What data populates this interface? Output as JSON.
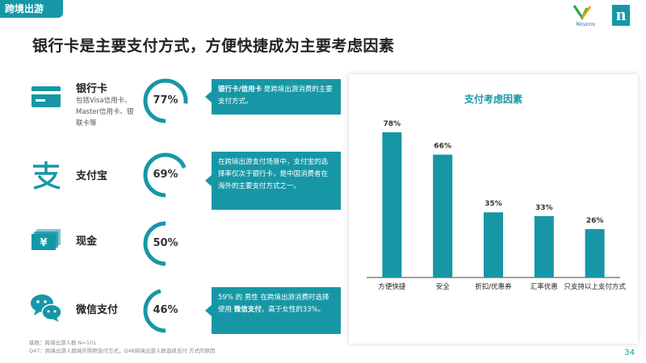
{
  "header": {
    "tag": "跨境出游",
    "logo_text": "Westerm",
    "brand_mark": "n"
  },
  "title": "银行卡是主要支付方式，方便快捷成为主要考虑因素",
  "colors": {
    "accent": "#1797a6",
    "ring_track": "#ffffff"
  },
  "methods": [
    {
      "label": "银行卡",
      "sub": "包括Visa信用卡、Master信用卡、银联卡等",
      "percent": 77,
      "percent_label": "77%",
      "icon": "credit-card-icon",
      "callout_parts": [
        {
          "text": "银行卡/信用卡",
          "bold": true
        },
        {
          "text": " 是跨境出游消费的主要支付方式。",
          "bold": false
        }
      ]
    },
    {
      "label": "支付宝",
      "sub": "",
      "percent": 69,
      "percent_label": "69%",
      "icon": "alipay-icon",
      "callout_parts": [
        {
          "text": "在跨境出游支付场景中，支付宝的选择率仅次于银行卡，是中国消费者在海外的主要支付方式之一。",
          "bold": false
        }
      ]
    },
    {
      "label": "现金",
      "sub": "",
      "percent": 50,
      "percent_label": "50%",
      "icon": "cash-icon",
      "callout_parts": []
    },
    {
      "label": "微信支付",
      "sub": "",
      "percent": 46,
      "percent_label": "46%",
      "icon": "wechat-icon",
      "callout_parts": [
        {
          "text": "59% 的 男性 在跨境出游消费时选择使用 ",
          "bold": false
        },
        {
          "text": "微信支付",
          "bold": true
        },
        {
          "text": "，高于女性的33%。",
          "bold": false
        }
      ]
    }
  ],
  "chart_data": {
    "type": "bar",
    "title": "支付考虑因素",
    "categories": [
      "方便快捷",
      "安全",
      "折扣/优惠券",
      "汇率优惠",
      "只支持以上支付方式"
    ],
    "values": [
      78,
      66,
      35,
      33,
      26
    ],
    "value_labels": [
      "78%",
      "66%",
      "35%",
      "33%",
      "26%"
    ],
    "ylim": [
      0,
      100
    ],
    "xlabel": "",
    "ylabel": "",
    "grid": false,
    "color": "#1797a6"
  },
  "notes": [
    "基数：跨境出游人群 N=101",
    "Q47：跨境出游人群境外购物支付方式，Q48跨境出游人群选择支付 方式的原因"
  ],
  "page_number": "34"
}
